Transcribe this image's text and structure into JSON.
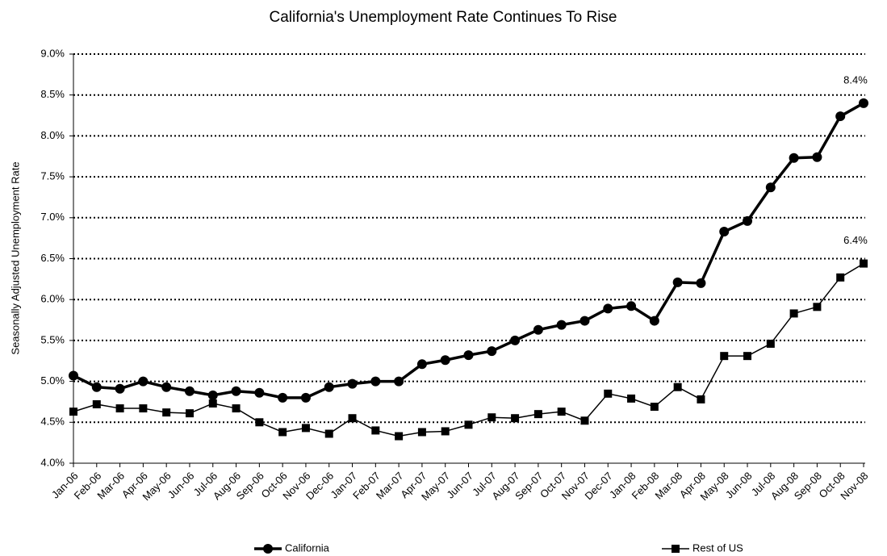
{
  "chart_data": {
    "type": "line",
    "title": "California's Unemployment Rate Continues To Rise",
    "y_label": "Seasonally Adjusted Unemployment Rate",
    "categories": [
      "Jan-06",
      "Feb-06",
      "Mar-06",
      "Apr-06",
      "May-06",
      "Jun-06",
      "Jul-06",
      "Aug-06",
      "Sep-06",
      "Oct-06",
      "Nov-06",
      "Dec-06",
      "Jan-07",
      "Feb-07",
      "Mar-07",
      "Apr-07",
      "May-07",
      "Jun-07",
      "Jul-07",
      "Aug-07",
      "Sep-07",
      "Oct-07",
      "Nov-07",
      "Dec-07",
      "Jan-08",
      "Feb-08",
      "Mar-08",
      "Apr-08",
      "May-08",
      "Jun-08",
      "Jul-08",
      "Aug-08",
      "Sep-08",
      "Oct-08",
      "Nov-08"
    ],
    "series": [
      {
        "name": "California",
        "color": "#000000",
        "marker": "circle",
        "values": [
          5.07,
          4.93,
          4.91,
          5.0,
          4.93,
          4.88,
          4.83,
          4.88,
          4.86,
          4.8,
          4.8,
          4.93,
          4.97,
          5.0,
          5.0,
          5.21,
          5.26,
          5.32,
          5.37,
          5.5,
          5.63,
          5.69,
          5.74,
          5.89,
          5.92,
          5.74,
          6.21,
          6.2,
          6.83,
          6.96,
          7.37,
          7.73,
          7.74,
          8.24,
          8.4
        ],
        "value_labels": [
          null,
          null,
          null,
          null,
          null,
          null,
          null,
          null,
          null,
          null,
          null,
          null,
          null,
          null,
          null,
          null,
          null,
          null,
          null,
          null,
          null,
          null,
          null,
          null,
          null,
          null,
          null,
          null,
          null,
          null,
          null,
          null,
          null,
          null,
          "8.4%"
        ]
      },
      {
        "name": "Rest of US",
        "color": "#000000",
        "marker": "square",
        "values": [
          4.63,
          4.72,
          4.67,
          4.67,
          4.62,
          4.61,
          4.73,
          4.67,
          4.5,
          4.38,
          4.43,
          4.36,
          4.55,
          4.4,
          4.33,
          4.38,
          4.39,
          4.47,
          4.56,
          4.55,
          4.6,
          4.63,
          4.52,
          4.85,
          4.79,
          4.69,
          4.93,
          4.78,
          5.31,
          5.31,
          5.46,
          5.83,
          5.91,
          6.27,
          6.44
        ],
        "value_labels": [
          null,
          null,
          null,
          null,
          null,
          null,
          null,
          null,
          null,
          null,
          null,
          null,
          null,
          null,
          null,
          null,
          null,
          null,
          null,
          null,
          null,
          null,
          null,
          null,
          null,
          null,
          null,
          null,
          null,
          null,
          null,
          null,
          null,
          null,
          "6.4%"
        ]
      }
    ],
    "ylim": [
      4.0,
      9.0
    ],
    "yticks": [
      {
        "value": 4.0,
        "label": "4.0%"
      },
      {
        "value": 4.5,
        "label": "4.5%"
      },
      {
        "value": 5.0,
        "label": "5.0%"
      },
      {
        "value": 5.5,
        "label": "5.5%"
      },
      {
        "value": 6.0,
        "label": "6.0%"
      },
      {
        "value": 6.5,
        "label": "6.5%"
      },
      {
        "value": 7.0,
        "label": "7.0%"
      },
      {
        "value": 7.5,
        "label": "7.5%"
      },
      {
        "value": 8.0,
        "label": "8.0%"
      },
      {
        "value": 8.5,
        "label": "8.5%"
      },
      {
        "value": 9.0,
        "label": "9.0%"
      }
    ],
    "grid": true,
    "legend": "bottom"
  }
}
